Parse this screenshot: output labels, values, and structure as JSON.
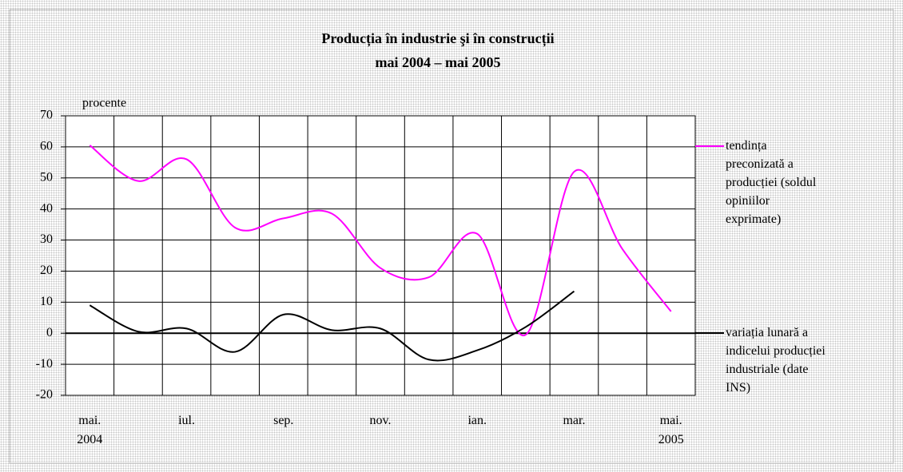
{
  "chart_data": {
    "type": "line",
    "title": "Producția în industrie şi în construcții",
    "subtitle": "mai 2004 – mai 2005",
    "y_label": "procente",
    "categories": [
      "mai.\n2004",
      null,
      "iul.",
      null,
      "sep.",
      null,
      "nov.",
      null,
      "ian.",
      null,
      "mar.",
      null,
      "mai.\n2005"
    ],
    "series": [
      {
        "name": "tendința preconizată a producției (soldul opiniilor exprimate)",
        "color": "#ff00ff",
        "values": [
          60.5,
          49,
          56,
          34,
          37,
          38.5,
          21,
          18,
          32,
          -0.5,
          52,
          27,
          7
        ]
      },
      {
        "name": "variația lunară a indicelui producției industriale (date INS)",
        "color": "#000000",
        "values": [
          9,
          0.5,
          1.5,
          -6,
          6,
          1,
          1.5,
          -8.5,
          -5.5,
          2,
          13.5,
          null,
          null
        ]
      }
    ],
    "ylim": [
      -20,
      70
    ],
    "yticks": [
      -20,
      -10,
      0,
      10,
      20,
      30,
      40,
      50,
      60,
      70
    ],
    "grid": true
  }
}
